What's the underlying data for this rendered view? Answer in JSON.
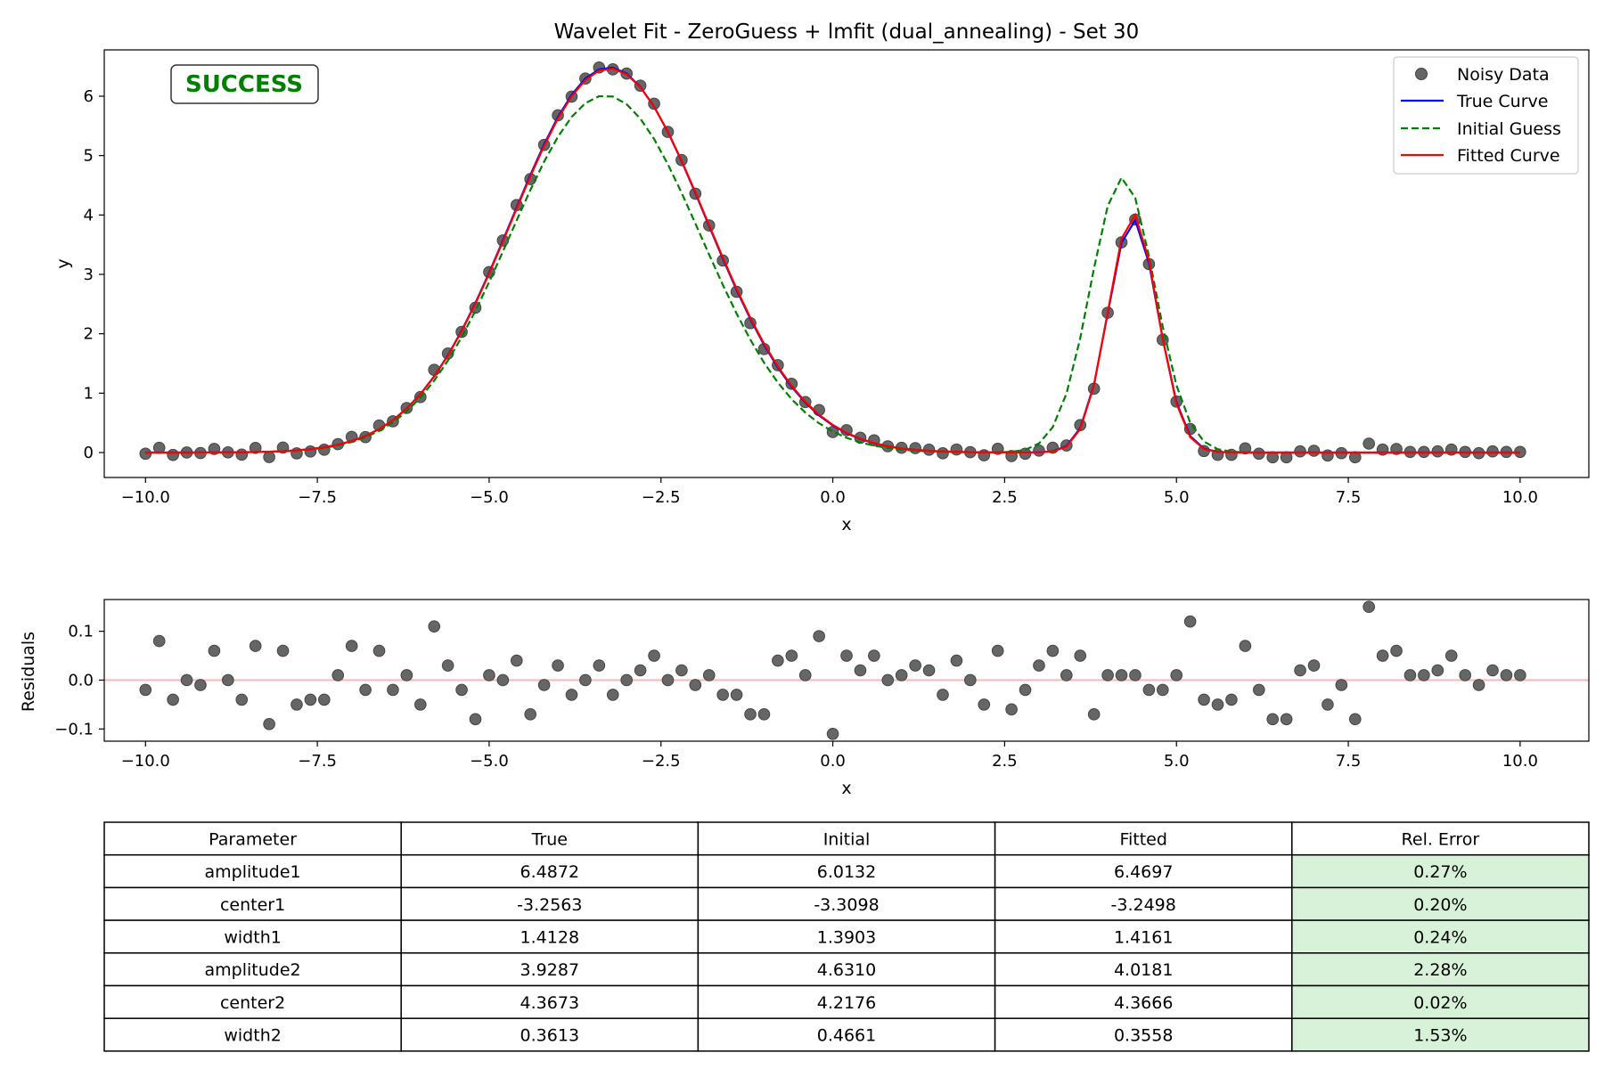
{
  "colors": {
    "true_curve": "#0000ff",
    "initial_guess": "#008000",
    "fitted_curve": "#ff0000",
    "data_point": "#666666",
    "zero_line": "#ffb3b3",
    "error_cell": "#d8f2da",
    "status_text": "#008000"
  },
  "chart_data": [
    {
      "type": "line",
      "title": "Wavelet Fit - ZeroGuess + lmfit (dual_annealing) - Set 30",
      "xlabel": "x",
      "ylabel": "y",
      "xlim": [
        -10.6,
        11.0
      ],
      "ylim": [
        -0.42,
        6.78
      ],
      "grid": false,
      "legend_placement": "top-right",
      "status_label": "SUCCESS",
      "x_ticks": [
        -10.0,
        -7.5,
        -5.0,
        -2.5,
        0.0,
        2.5,
        5.0,
        7.5,
        10.0
      ],
      "x_tick_labels": [
        "−10.0",
        "−7.5",
        "−5.0",
        "−2.5",
        "0.0",
        "2.5",
        "5.0",
        "7.5",
        "10.0"
      ],
      "y_ticks": [
        0,
        1,
        2,
        3,
        4,
        5,
        6
      ],
      "y_tick_labels": [
        "0",
        "1",
        "2",
        "3",
        "4",
        "5",
        "6"
      ],
      "model": "gaussian_pair",
      "series": [
        {
          "name": "Noisy Data",
          "kind": "points"
        },
        {
          "name": "True Curve",
          "kind": "line",
          "params": [
            6.4872,
            -3.2563,
            1.4128,
            3.9287,
            4.3673,
            0.3613
          ]
        },
        {
          "name": "Initial Guess",
          "kind": "dashed",
          "params": [
            6.0132,
            -3.3098,
            1.3903,
            4.631,
            4.2176,
            0.4661
          ]
        },
        {
          "name": "Fitted Curve",
          "kind": "line",
          "params": [
            6.4697,
            -3.2498,
            1.4161,
            4.0181,
            4.3666,
            0.3558
          ]
        }
      ],
      "x_step": 0.2,
      "x_start": -10.0,
      "noise": [
        -0.02,
        0.08,
        -0.04,
        0.0,
        -0.01,
        0.06,
        0.0,
        -0.04,
        0.07,
        -0.09,
        0.06,
        -0.05,
        -0.04,
        -0.04,
        0.01,
        0.07,
        -0.02,
        0.06,
        -0.02,
        0.01,
        -0.05,
        0.11,
        0.03,
        -0.02,
        -0.08,
        0.01,
        0.0,
        0.04,
        -0.07,
        -0.01,
        0.03,
        -0.03,
        0.0,
        0.03,
        -0.03,
        0.0,
        0.02,
        0.05,
        0.0,
        0.02,
        -0.01,
        0.01,
        -0.03,
        -0.03,
        -0.07,
        -0.07,
        0.04,
        0.05,
        0.01,
        0.09,
        -0.11,
        0.05,
        0.02,
        0.05,
        0.0,
        0.01,
        0.03,
        0.02,
        -0.03,
        0.04,
        0.0,
        -0.05,
        0.06,
        -0.06,
        -0.02,
        0.03,
        0.06,
        0.01,
        0.05,
        -0.07,
        0.01,
        0.01,
        0.01,
        -0.02,
        -0.02,
        0.01,
        0.12,
        -0.04,
        -0.05,
        -0.04,
        0.07,
        -0.02,
        -0.08,
        -0.08,
        0.02,
        0.03,
        -0.05,
        -0.01,
        -0.08,
        0.15,
        0.05,
        0.06,
        0.01,
        0.01,
        0.02,
        0.05,
        0.01,
        -0.01,
        0.02,
        0.01,
        0.01
      ]
    },
    {
      "type": "scatter",
      "xlabel": "x",
      "ylabel": "Residuals",
      "xlim": [
        -10.6,
        11.0
      ],
      "ylim": [
        -0.125,
        0.165
      ],
      "grid": false,
      "x_ticks": [
        -10.0,
        -7.5,
        -5.0,
        -2.5,
        0.0,
        2.5,
        5.0,
        7.5,
        10.0
      ],
      "x_tick_labels": [
        "−10.0",
        "−7.5",
        "−5.0",
        "−2.5",
        "0.0",
        "2.5",
        "5.0",
        "7.5",
        "10.0"
      ],
      "y_ticks": [
        -0.1,
        0.0,
        0.1
      ],
      "y_tick_labels": [
        "−0.1",
        "0.0",
        "0.1"
      ],
      "reference_line": 0.0
    },
    {
      "type": "table",
      "columns": [
        "Parameter",
        "True",
        "Initial",
        "Fitted",
        "Rel. Error"
      ],
      "rows": [
        [
          "amplitude1",
          "6.4872",
          "6.0132",
          "6.4697",
          "0.27%"
        ],
        [
          "center1",
          "-3.2563",
          "-3.3098",
          "-3.2498",
          "0.20%"
        ],
        [
          "width1",
          "1.4128",
          "1.3903",
          "1.4161",
          "0.24%"
        ],
        [
          "amplitude2",
          "3.9287",
          "4.6310",
          "4.0181",
          "2.28%"
        ],
        [
          "center2",
          "4.3673",
          "4.2176",
          "4.3666",
          "0.02%"
        ],
        [
          "width2",
          "0.3613",
          "0.4661",
          "0.3558",
          "1.53%"
        ]
      ]
    }
  ]
}
